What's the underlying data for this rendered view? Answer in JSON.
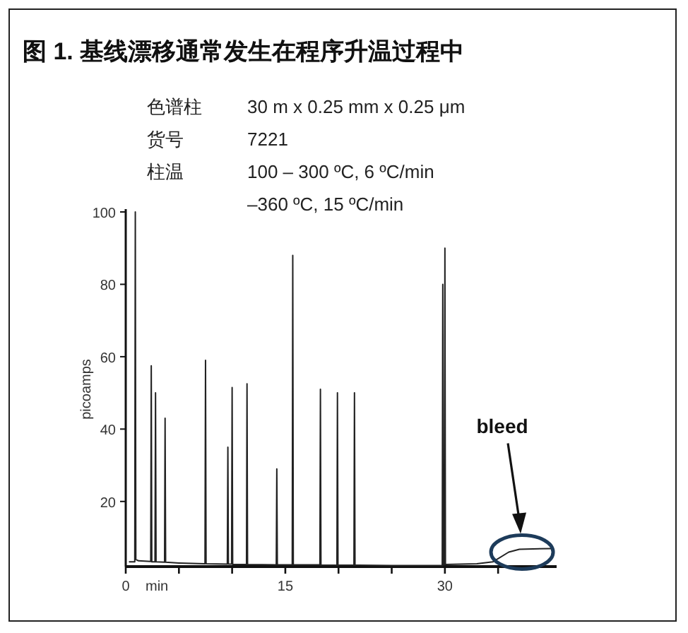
{
  "chart_data": {
    "type": "line",
    "title": "图 1. 基线漂移通常发生在程序升温过程中",
    "xlabel": "min",
    "ylabel": "picoamps",
    "annotations": [
      "色谱柱",
      "30 m x 0.25 mm x 0.25 μm",
      "货号",
      "7221",
      "柱温",
      "100 – 300 ºC, 6 ºC/min",
      "–360 ºC, 15 ºC/min",
      "bleed"
    ],
    "xlim": [
      0,
      40.5
    ],
    "ylim": [
      2,
      100
    ],
    "xticks": [
      0,
      {
        "value": 5,
        "label": null
      },
      {
        "value": 10,
        "label": null
      },
      15,
      {
        "value": 20,
        "label": null
      },
      {
        "value": 25,
        "label": null
      },
      30,
      {
        "value": 35,
        "label": null
      }
    ],
    "yticks": [
      20,
      40,
      60,
      80,
      100
    ],
    "grid": false,
    "marker": "none",
    "line_style": "solid",
    "series": [
      {
        "color": "#222222",
        "x": [
          0.3,
          0.85,
          0.9,
          0.95,
          1.2,
          2.35,
          2.4,
          2.45,
          2.75,
          2.8,
          2.85,
          3.65,
          3.7,
          3.75,
          5,
          7.45,
          7.5,
          7.55,
          9.55,
          9.6,
          9.65,
          9.95,
          10,
          10.05,
          11.35,
          11.4,
          11.45,
          14.15,
          14.2,
          14.25,
          15.65,
          15.7,
          15.75,
          18.25,
          18.3,
          18.35,
          19.85,
          19.9,
          19.95,
          21.45,
          21.5,
          21.55,
          25,
          29.75,
          29.8,
          29.85,
          29.95,
          30,
          30.05,
          33,
          34.5,
          36,
          37,
          40
        ],
        "values": [
          3.3,
          3.3,
          100,
          4,
          3.6,
          3.4,
          57.5,
          3.3,
          3.3,
          50,
          3.3,
          3.2,
          43,
          3.2,
          3,
          2.8,
          59,
          2.8,
          2.7,
          35,
          2.7,
          2.7,
          51.5,
          2.6,
          2.6,
          52.5,
          2.6,
          2.5,
          29,
          2.5,
          2.5,
          88,
          2.5,
          2.5,
          51,
          2.4,
          2.4,
          50,
          2.4,
          2.4,
          50,
          2.4,
          2.3,
          2.3,
          80,
          2.5,
          2.5,
          90,
          2.6,
          2.8,
          3.3,
          6,
          6.8,
          7
        ]
      }
    ]
  }
}
